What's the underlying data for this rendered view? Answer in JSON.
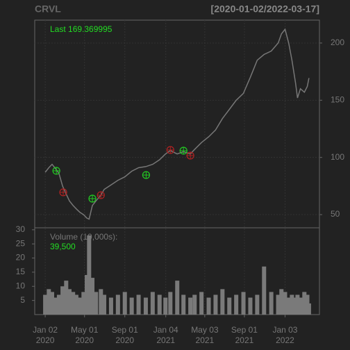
{
  "chart_data": {
    "type": "stock",
    "title": "CRVL",
    "date_range": "[2020-01-02/2022-03-17]",
    "last_label": "Last 169.369995",
    "volume_label": "Volume (10,000s):",
    "last_volume_label": "39,500",
    "line_color": "#777777",
    "x": [
      "2020-01-02",
      "2020-01-13",
      "2020-01-23",
      "2020-02-03",
      "2020-02-13",
      "2020-02-24",
      "2020-03-06",
      "2020-03-16",
      "2020-03-27",
      "2020-04-06",
      "2020-04-17",
      "2020-04-28",
      "2020-05-08",
      "2020-05-15",
      "2020-05-25",
      "2020-06-05",
      "2020-06-20",
      "2020-06-30",
      "2020-07-21",
      "2020-08-11",
      "2020-09-01",
      "2020-09-22",
      "2020-10-13",
      "2020-11-04",
      "2020-11-25",
      "2020-12-16",
      "2021-01-03",
      "2021-01-18",
      "2021-02-08",
      "2021-02-27",
      "2021-03-20",
      "2021-04-02",
      "2021-04-23",
      "2021-05-15",
      "2021-06-05",
      "2021-06-26",
      "2021-07-17",
      "2021-08-07",
      "2021-08-29",
      "2021-09-19",
      "2021-10-10",
      "2021-10-31",
      "2021-11-22",
      "2021-12-13",
      "2021-12-23",
      "2022-01-03",
      "2022-01-14",
      "2022-01-24",
      "2022-02-04",
      "2022-02-10",
      "2022-02-19",
      "2022-03-03",
      "2022-03-12",
      "2022-03-17"
    ],
    "values": [
      87,
      91,
      94,
      90,
      86,
      75,
      68,
      62,
      58,
      55,
      52,
      50,
      47,
      46,
      58,
      62,
      67,
      72,
      76,
      80,
      83,
      88,
      91,
      92,
      94,
      98,
      103,
      106,
      103,
      105,
      103,
      107,
      113,
      118,
      124,
      134,
      142,
      150,
      156,
      170,
      185,
      190,
      193,
      200,
      208,
      212,
      200,
      185,
      165,
      152,
      160,
      157,
      162,
      169.37
    ],
    "volume": [
      7,
      9,
      8,
      6,
      7,
      10,
      12,
      9,
      8,
      7,
      6,
      8,
      14,
      28,
      13,
      8,
      9,
      7,
      6,
      7,
      8,
      6,
      7,
      6,
      8,
      7,
      6,
      8,
      12,
      7,
      6,
      7,
      8,
      6,
      7,
      9,
      6,
      7,
      8,
      6,
      7,
      17,
      8,
      7,
      9,
      8,
      6,
      7,
      6,
      7,
      6,
      8,
      7,
      3.95
    ],
    "volume_color": "#7a7a7a",
    "up_markers": {
      "color": "#22cc22",
      "x": [
        "2020-02-05",
        "2020-05-25",
        "2020-11-05",
        "2021-02-27"
      ],
      "values": [
        88.3,
        64,
        84.6,
        105.9
      ]
    },
    "down_markers": {
      "color": "#b22222",
      "x": [
        "2020-02-26",
        "2020-06-20",
        "2021-01-18",
        "2021-03-20"
      ],
      "values": [
        69.5,
        67,
        106.5,
        101.6
      ]
    },
    "xlim": [
      "2019-12-01",
      "2022-04-18"
    ],
    "ylim": [
      38.5,
      220
    ],
    "yticks": [
      50,
      100,
      150,
      200
    ],
    "vol_ylim": [
      0,
      30.7
    ],
    "vol_yticks": [
      5,
      10,
      15,
      20,
      25,
      30
    ],
    "xticks": [
      {
        "value": "2020-01-02",
        "label": "Jan 02",
        "year": "2020"
      },
      {
        "value": "2020-05-01",
        "label": "May 01",
        "year": "2020"
      },
      {
        "value": "2020-09-01",
        "label": "Sep 01",
        "year": "2020"
      },
      {
        "value": "2021-01-04",
        "label": "Jan 04",
        "year": "2021"
      },
      {
        "value": "2021-05-03",
        "label": "May 03",
        "year": "2021"
      },
      {
        "value": "2021-09-01",
        "label": "Sep 01",
        "year": "2021"
      },
      {
        "value": "2022-01-03",
        "label": "Jan 03",
        "year": "2022"
      }
    ],
    "grid": true
  }
}
